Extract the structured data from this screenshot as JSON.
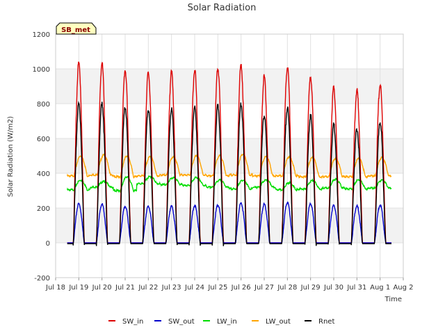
{
  "chart_data": {
    "type": "line",
    "title": "Solar Radiation",
    "xlabel": "Time",
    "ylabel": "Solar Radiation (W/m2)",
    "badge": "SB_met",
    "ylim": [
      -200,
      1200
    ],
    "yticks": [
      -200,
      0,
      200,
      400,
      600,
      800,
      1000,
      1200
    ],
    "xlim": [
      "2024-07-18",
      "2024-08-02"
    ],
    "xtick_labels": [
      "Jul 18",
      "Jul 19",
      "Jul 20",
      "Jul 21",
      "Jul 22",
      "Jul 23",
      "Jul 24",
      "Jul 25",
      "Jul 26",
      "Jul 27",
      "Jul 28",
      "Jul 29",
      "Jul 30",
      "Jul 31",
      "Aug 1",
      "Aug 2"
    ],
    "grid": true,
    "legend_position": "bottom",
    "days": [
      "Jul 18",
      "Jul 19",
      "Jul 20",
      "Jul 21",
      "Jul 22",
      "Jul 23",
      "Jul 24",
      "Jul 25",
      "Jul 26",
      "Jul 27",
      "Jul 28",
      "Jul 29",
      "Jul 30",
      "Jul 31"
    ],
    "series": [
      {
        "name": "SW_in",
        "color": "#dd0000",
        "daily_peak": [
          1035,
          1030,
          995,
          980,
          980,
          995,
          1005,
          1020,
          955,
          1010,
          955,
          890,
          875,
          910
        ]
      },
      {
        "name": "SW_out",
        "color": "#0000cc",
        "daily_peak": [
          225,
          222,
          210,
          210,
          210,
          215,
          218,
          228,
          222,
          232,
          225,
          215,
          212,
          218
        ]
      },
      {
        "name": "LW_in",
        "color": "#00dd00",
        "daily_peak": [
          360,
          352,
          380,
          380,
          375,
          375,
          360,
          360,
          360,
          345,
          358,
          365,
          362,
          360
        ],
        "daily_min": [
          305,
          320,
          300,
          340,
          335,
          330,
          320,
          310,
          320,
          305,
          310,
          315,
          310,
          315
        ]
      },
      {
        "name": "LW_out",
        "color": "#ffa500",
        "daily_peak": [
          500,
          505,
          500,
          495,
          495,
          500,
          500,
          510,
          495,
          495,
          490,
          485,
          485,
          490
        ],
        "daily_min": [
          385,
          390,
          380,
          385,
          390,
          390,
          385,
          390,
          385,
          385,
          380,
          380,
          380,
          385
        ]
      },
      {
        "name": "Rnet",
        "color": "#000000",
        "daily_peak": [
          800,
          800,
          780,
          770,
          770,
          780,
          785,
          795,
          735,
          775,
          730,
          680,
          655,
          695
        ],
        "night_value": -5
      }
    ]
  }
}
